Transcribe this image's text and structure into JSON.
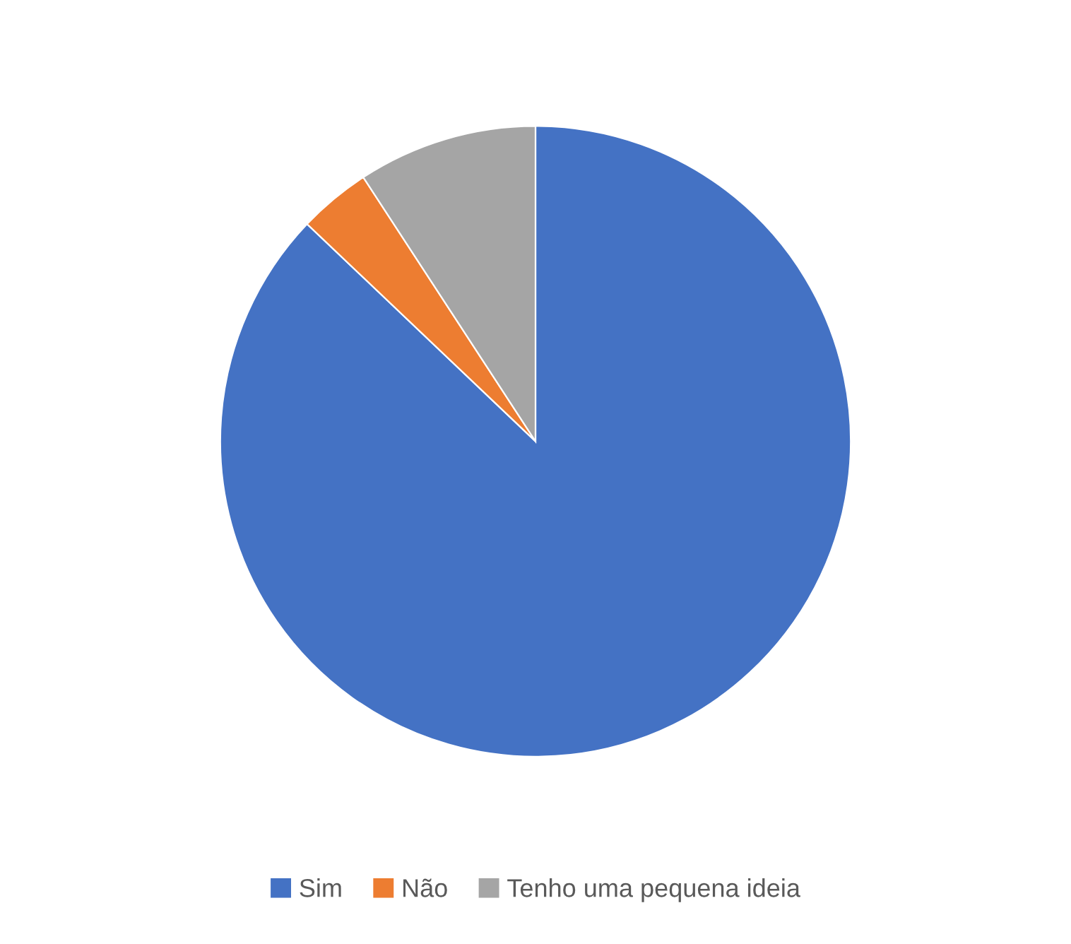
{
  "chart_data": {
    "type": "pie",
    "categories": [
      "Sim",
      "Não",
      "Tenho uma pequena ideia"
    ],
    "values": [
      87.1,
      3.7,
      9.2
    ],
    "colors": [
      "#4472c4",
      "#ed7d31",
      "#a5a5a5"
    ],
    "legend": "bottom"
  }
}
